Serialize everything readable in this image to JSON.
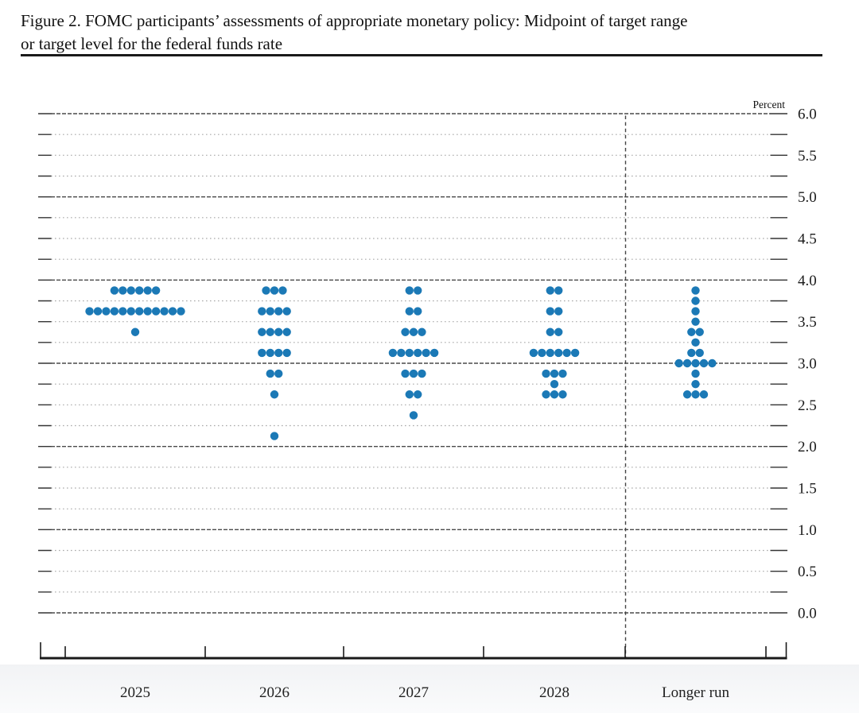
{
  "header": {
    "title_line1": "Figure 2. FOMC participants’ assessments of appropriate monetary policy: Midpoint of target range",
    "title_line2": "or target level for the federal funds rate"
  },
  "axis": {
    "unit_label": "Percent",
    "y_labels": [
      "6.0",
      "5.5",
      "5.0",
      "4.5",
      "4.0",
      "3.5",
      "3.0",
      "2.5",
      "2.0",
      "1.5",
      "1.0",
      "0.5",
      "0.0"
    ]
  },
  "colors": {
    "dot": "#1b79b6",
    "grid_minor": "#a9a9a9",
    "grid_major": "#4a4a4a",
    "axis": "#1a1a1a",
    "text": "#1a1a1a"
  },
  "chart_data": {
    "type": "scatter",
    "title": "Figure 2. FOMC participants’ assessments of appropriate monetary policy: Midpoint of target range or target level for the federal funds rate",
    "ylabel": "Percent",
    "ylim": [
      0.0,
      6.0
    ],
    "y_label_step": 0.5,
    "gridline_step": 0.25,
    "grid": "dotted horizontal gridlines every 0.25, darker at integers; dashed vertical separator before Longer run",
    "legend_position": "none",
    "categories": [
      "2025",
      "2026",
      "2027",
      "2028",
      "Longer run"
    ],
    "series": [
      {
        "category": "2025",
        "dots": [
          {
            "rate": 3.875,
            "count": 6
          },
          {
            "rate": 3.625,
            "count": 12
          },
          {
            "rate": 3.375,
            "count": 1
          }
        ]
      },
      {
        "category": "2026",
        "dots": [
          {
            "rate": 3.875,
            "count": 3
          },
          {
            "rate": 3.625,
            "count": 4
          },
          {
            "rate": 3.375,
            "count": 4
          },
          {
            "rate": 3.125,
            "count": 4
          },
          {
            "rate": 2.875,
            "count": 2
          },
          {
            "rate": 2.625,
            "count": 1
          },
          {
            "rate": 2.125,
            "count": 1
          }
        ]
      },
      {
        "category": "2027",
        "dots": [
          {
            "rate": 3.875,
            "count": 2
          },
          {
            "rate": 3.625,
            "count": 2
          },
          {
            "rate": 3.375,
            "count": 3
          },
          {
            "rate": 3.125,
            "count": 6
          },
          {
            "rate": 2.875,
            "count": 3
          },
          {
            "rate": 2.625,
            "count": 2
          },
          {
            "rate": 2.375,
            "count": 1
          }
        ]
      },
      {
        "category": "2028",
        "dots": [
          {
            "rate": 3.875,
            "count": 2
          },
          {
            "rate": 3.625,
            "count": 2
          },
          {
            "rate": 3.375,
            "count": 2
          },
          {
            "rate": 3.125,
            "count": 6
          },
          {
            "rate": 2.875,
            "count": 3
          },
          {
            "rate": 2.75,
            "count": 1
          },
          {
            "rate": 2.625,
            "count": 3
          }
        ]
      },
      {
        "category": "Longer run",
        "dots": [
          {
            "rate": 3.875,
            "count": 1
          },
          {
            "rate": 3.75,
            "count": 1
          },
          {
            "rate": 3.625,
            "count": 1
          },
          {
            "rate": 3.5,
            "count": 1
          },
          {
            "rate": 3.375,
            "count": 2
          },
          {
            "rate": 3.25,
            "count": 1
          },
          {
            "rate": 3.125,
            "count": 2
          },
          {
            "rate": 3.0,
            "count": 5
          },
          {
            "rate": 2.875,
            "count": 1
          },
          {
            "rate": 2.75,
            "count": 1
          },
          {
            "rate": 2.625,
            "count": 3
          }
        ]
      }
    ]
  }
}
